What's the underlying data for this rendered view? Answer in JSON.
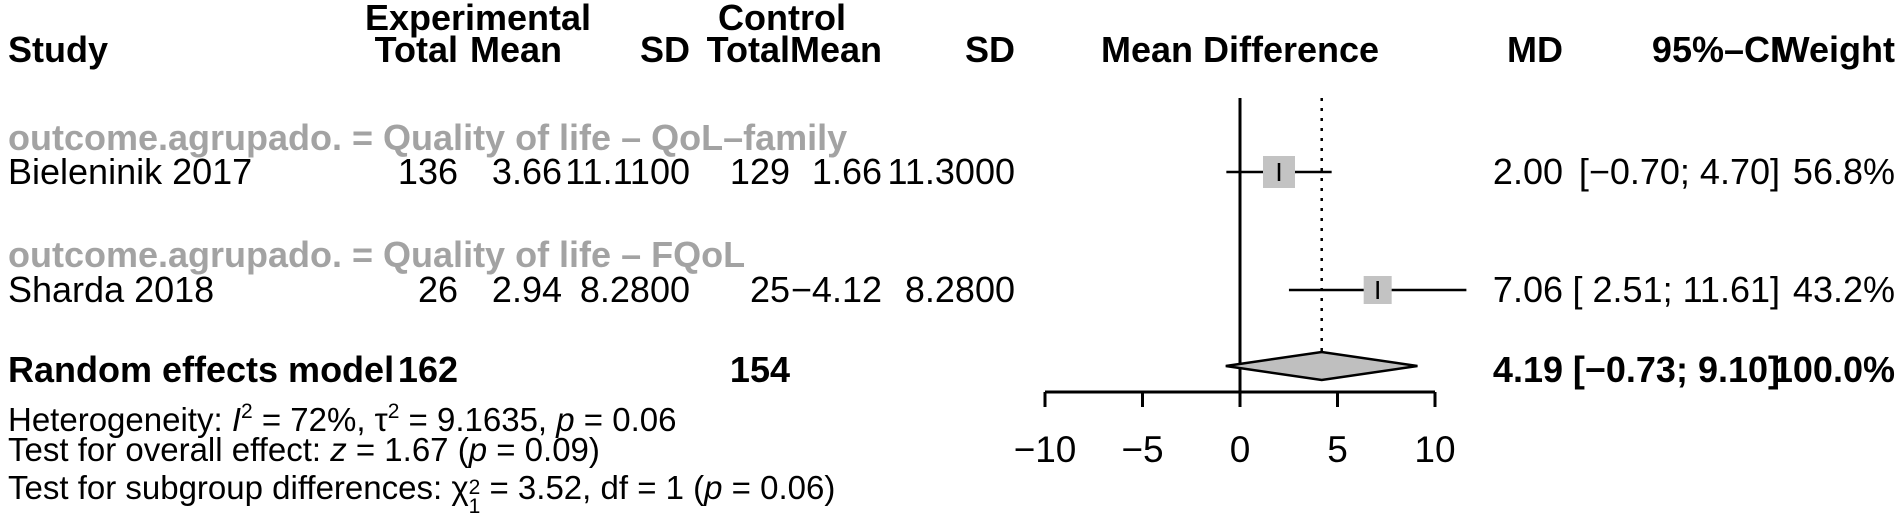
{
  "header": {
    "group_exp": "Experimental",
    "group_ctl": "Control",
    "col_study": "Study",
    "col_total_exp": "Total",
    "col_mean_exp": "Mean",
    "col_sd_exp": "SD",
    "col_total_ctl": "Total",
    "col_mean_ctl": "Mean",
    "col_sd_ctl": "SD",
    "col_mean_difference": "Mean Difference",
    "col_md": "MD",
    "col_ci": "95%–CI",
    "col_weight": "Weight"
  },
  "sg1": {
    "label": "outcome.agrupado. = Quality of life – QoL–family",
    "study": {
      "name": "Bieleninik 2017",
      "total_e": "136",
      "mean_e": "3.66",
      "sd_e": "11.1100",
      "total_c": "129",
      "mean_c": "1.66",
      "sd_c": "11.3000",
      "md": "2.00",
      "ci": "[−0.70; 4.70]",
      "weight": "56.8%"
    }
  },
  "sg2": {
    "label": "outcome.agrupado. = Quality of life – FQoL",
    "study": {
      "name": "Sharda 2018",
      "total_e": "26",
      "mean_e": "2.94",
      "sd_e": "8.2800",
      "total_c": "25",
      "mean_c": "−4.12",
      "sd_c": "8.2800",
      "md": "7.06",
      "ci": "[ 2.51; 11.61]",
      "weight": "43.2%"
    }
  },
  "overall_row": {
    "label": "Random effects model",
    "total_e": "162",
    "total_c": "154",
    "md": "4.19",
    "ci": "[−0.73; 9.10]",
    "weight": "100.0%"
  },
  "stats": {
    "het": {
      "t1": "Heterogeneity: ",
      "i_sym": "I",
      "i_sup": "2",
      "t2": " = 72%, τ",
      "tau_sup": "2",
      "t3": " = 9.1635, ",
      "p_sym": "p",
      "t4": " = 0.06"
    },
    "overall_test": {
      "t1": "Test for overall effect: ",
      "z_sym": "z",
      "t2": " = 1.67 (",
      "p_sym": "p",
      "t3": " = 0.09)"
    },
    "subgroup_test": {
      "t1": "Test for subgroup differences: ",
      "chi_sym": "χ",
      "chi_sup": "2",
      "chi_sub": "1",
      "t2": " = 3.52, df = 1 (",
      "p_sym": "p",
      "t3": " = 0.06)"
    }
  },
  "colors": {
    "square_fill": "#c3c3c3",
    "diamond_fill": "#bfbfbf",
    "subgroup_label_gray": "#a3a3a3",
    "line_black": "#000000"
  },
  "chart_data": {
    "type": "forest",
    "effect_measure": "Mean Difference",
    "xlim": [
      -10,
      10
    ],
    "x_ticks": [
      -10,
      -5,
      0,
      5,
      10
    ],
    "zero_line": 0,
    "grid": false,
    "subgroups": [
      {
        "label": "outcome.agrupado. = Quality of life – QoL–family",
        "studies": [
          {
            "label": "Bieleninik 2017",
            "n_exp": 136,
            "mean_exp": 3.66,
            "sd_exp": 11.11,
            "n_ctl": 129,
            "mean_ctl": 1.66,
            "sd_ctl": 11.3,
            "md": 2.0,
            "ci_low": -0.7,
            "ci_high": 4.7,
            "weight_pct": 56.8
          }
        ]
      },
      {
        "label": "outcome.agrupado. = Quality of life – FQoL",
        "studies": [
          {
            "label": "Sharda 2018",
            "n_exp": 26,
            "mean_exp": 2.94,
            "sd_exp": 8.28,
            "n_ctl": 25,
            "mean_ctl": -4.12,
            "sd_ctl": 8.28,
            "md": 7.06,
            "ci_low": 2.51,
            "ci_high": 11.61,
            "weight_pct": 43.2
          }
        ]
      }
    ],
    "studies": [
      {
        "label": "Bieleninik 2017",
        "md": 2.0,
        "ci_low": -0.7,
        "ci_high": 4.7,
        "weight_pct": 56.8
      },
      {
        "label": "Sharda 2018",
        "md": 7.06,
        "ci_low": 2.51,
        "ci_high": 11.61,
        "weight_pct": 43.2
      }
    ],
    "overall": {
      "label": "Random effects model",
      "n_exp": 162,
      "n_ctl": 154,
      "md": 4.19,
      "ci_low": -0.73,
      "ci_high": 9.1,
      "weight_pct": 100.0
    },
    "heterogeneity": {
      "I2": "72%",
      "tau2": 9.1635,
      "p": 0.06
    },
    "overall_effect_test": {
      "z": 1.67,
      "p": 0.09
    },
    "subgroup_difference_test": {
      "chi2": 3.52,
      "df": 1,
      "p": 0.06
    }
  }
}
